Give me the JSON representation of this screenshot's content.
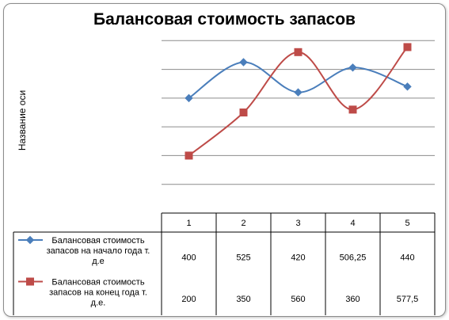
{
  "chart_data": {
    "type": "line",
    "title": "Балансовая стоимость запасов",
    "ylabel": "Название оси",
    "xlabel": "",
    "categories": [
      "1",
      "2",
      "3",
      "4",
      "5"
    ],
    "ylim": [
      0,
      700
    ],
    "smooth": true,
    "grid": true,
    "data_table": true,
    "series": [
      {
        "name_lines": [
          "Балансовая стоимость",
          "запасов на начало года т.",
          "д.е"
        ],
        "values": [
          400,
          525,
          420,
          506.25,
          440
        ],
        "labels": [
          "400",
          "525",
          "420",
          "506,25",
          "440"
        ],
        "color": "#4a7ebb",
        "marker": "diamond"
      },
      {
        "name_lines": [
          "Балансовая стоимость",
          "запасов на конец года т.",
          "д.е."
        ],
        "values": [
          200,
          350,
          560,
          360,
          577.5
        ],
        "labels": [
          "200",
          "350",
          "560",
          "360",
          "577,5"
        ],
        "color": "#be4b48",
        "marker": "square"
      }
    ]
  }
}
